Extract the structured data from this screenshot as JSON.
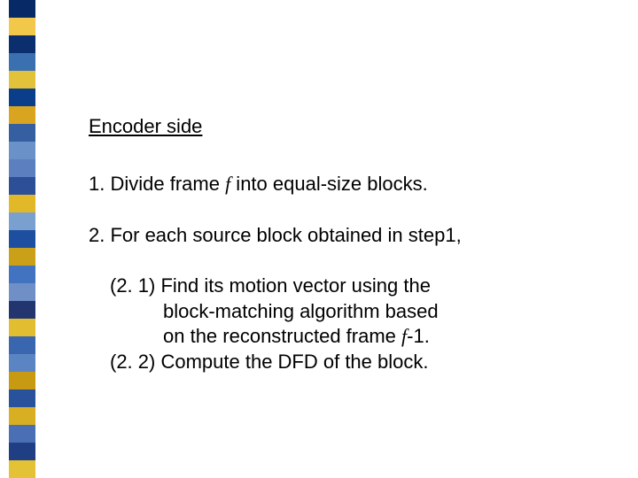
{
  "stripes": {
    "count": 27,
    "unitHeight": 20,
    "colors": [
      "#072a66",
      "#f2c84b",
      "#0a2e6e",
      "#3a6fb0",
      "#e1c23a",
      "#0a3d8a",
      "#d9a521",
      "#355fa0",
      "#6a91c8",
      "#5b7fbf",
      "#2d4f97",
      "#e0b828",
      "#7aa0d0",
      "#1e4ea0",
      "#caa018",
      "#4273c0",
      "#6f8fc6",
      "#22356f",
      "#e2bd30",
      "#3a66b0",
      "#5b84c2",
      "#c79a12",
      "#29529c",
      "#d8ae22",
      "#4b6fb4",
      "#1f3e84",
      "#e3c236"
    ]
  },
  "heading": "Encoder side",
  "step1": {
    "prefix": "1. Divide frame ",
    "var": "f",
    "suffix": " into equal-size blocks."
  },
  "step2": "2. For each source block obtained in step1,",
  "sub1": {
    "l1": "(2. 1) Find its motion vector using the",
    "l2": "block-matching algorithm based",
    "l3_a": "on the reconstructed frame ",
    "l3_var": "f",
    "l3_b": "-1."
  },
  "sub2": "(2. 2) Compute the DFD of the block."
}
